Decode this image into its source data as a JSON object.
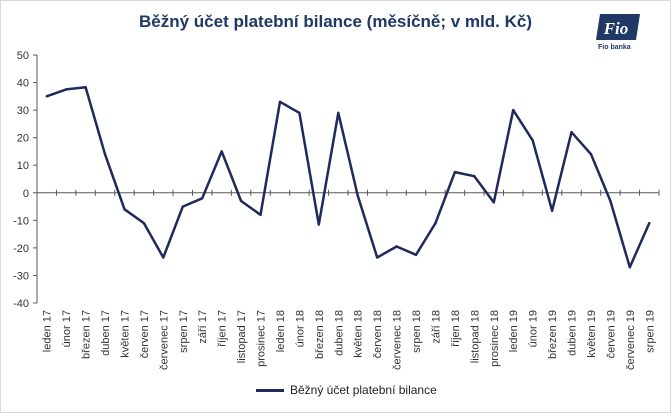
{
  "chart_data": {
    "type": "line",
    "title": "Běžný účet platební bilance (měsíčně; v mld. Kč)",
    "xlabel": "",
    "ylabel": "",
    "ylim": [
      -40,
      50
    ],
    "yticks": [
      50,
      40,
      30,
      20,
      10,
      0,
      -10,
      -20,
      -30,
      -40
    ],
    "categories": [
      "leden 17",
      "únor 17",
      "březen 17",
      "duben 17",
      "květen 17",
      "červen 17",
      "červenec 17",
      "srpen 17",
      "září 17",
      "říjen 17",
      "listopad 17",
      "prosinec 17",
      "leden 18",
      "únor 18",
      "březen 18",
      "duben 18",
      "květen 18",
      "červen 18",
      "červenec 18",
      "srpen 18",
      "září 18",
      "říjen 18",
      "listopad 18",
      "prosinec 18",
      "leden 19",
      "únor 19",
      "březen 19",
      "duben 19",
      "květen 19",
      "červen 19",
      "červenec 19",
      "srpen 19"
    ],
    "series": [
      {
        "name": "Běžný účet platební bilance",
        "color": "#1f2a5c",
        "values": [
          35,
          37.5,
          38.3,
          14,
          -6,
          -11,
          -23.5,
          -5,
          -2,
          15,
          -3,
          -8,
          33,
          29,
          -11.5,
          29,
          -1,
          -23.5,
          -19.5,
          -22.5,
          -11,
          7.5,
          6,
          -3.5,
          30,
          19,
          -6.5,
          22,
          14,
          -3,
          -27,
          -11
        ]
      }
    ],
    "grid": false,
    "legend_position": "bottom"
  },
  "logo": {
    "brand": "Fio",
    "caption": "Fio banka",
    "icon": "fio-logo-icon"
  }
}
